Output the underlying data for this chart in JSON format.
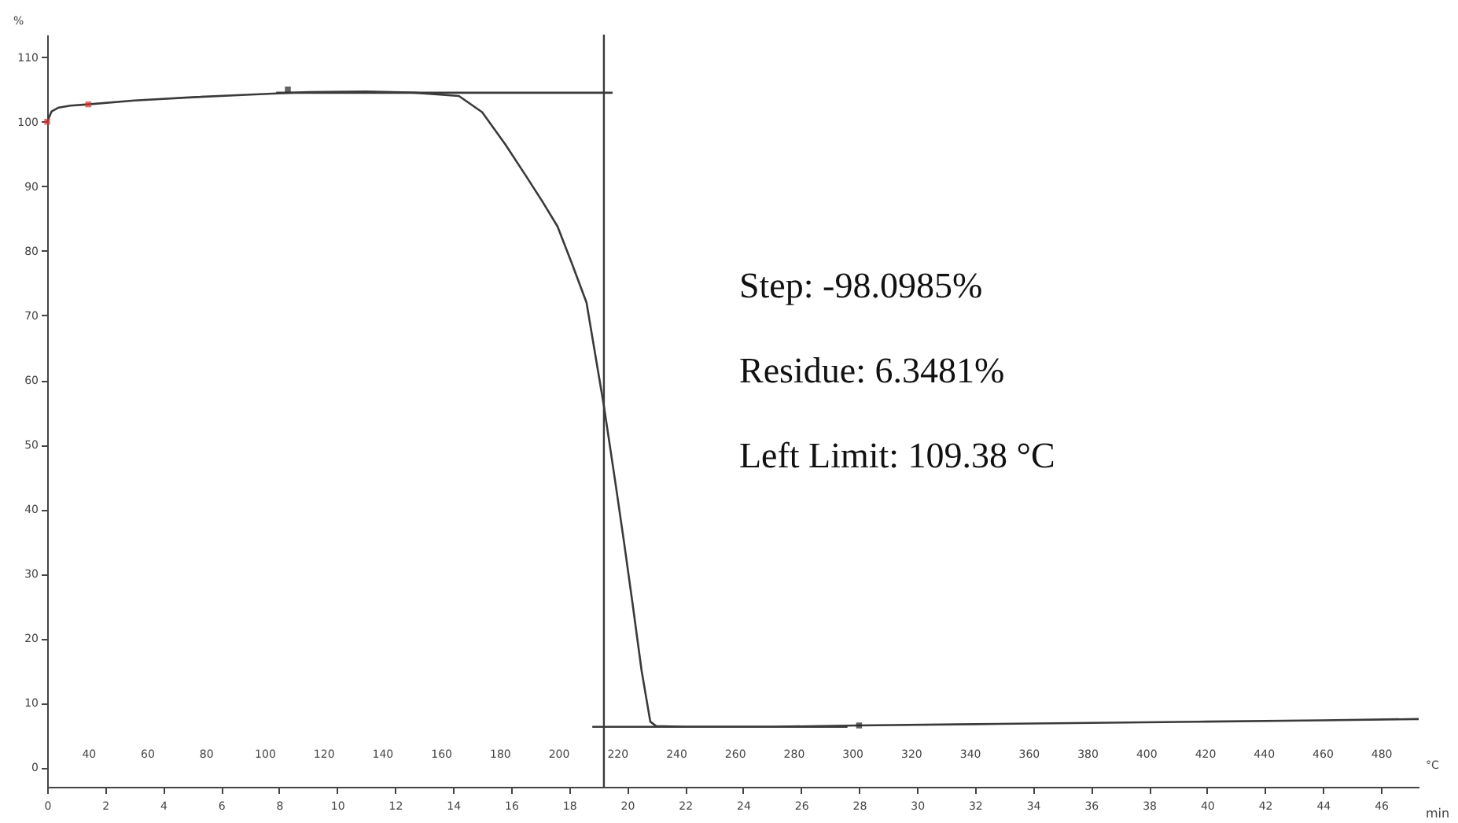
{
  "chart_data": {
    "type": "line",
    "xlabel": "min",
    "x2label": "°C",
    "ylabel": "%",
    "xlim": [
      0,
      47.3
    ],
    "xticks": [
      0,
      2,
      4,
      6,
      8,
      10,
      12,
      14,
      16,
      18,
      20,
      22,
      24,
      26,
      28,
      30,
      32,
      34,
      36,
      38,
      40,
      42,
      44,
      46
    ],
    "x2lim": [
      26,
      492.8
    ],
    "x2ticks": [
      40,
      60,
      80,
      100,
      120,
      140,
      160,
      180,
      200,
      220,
      240,
      260,
      280,
      300,
      320,
      340,
      360,
      380,
      400,
      420,
      440,
      460,
      480
    ],
    "ylim": [
      -3,
      113.5
    ],
    "yticks": [
      0,
      10,
      20,
      30,
      40,
      50,
      60,
      70,
      80,
      90,
      100,
      110
    ],
    "grid": false,
    "series": [
      {
        "color": "#3a3a3a",
        "x": [
          0,
          0.15,
          0.4,
          0.8,
          1.42,
          3,
          5,
          7,
          9,
          11,
          12.7,
          14.2,
          15,
          15.8,
          16.5,
          17.1,
          17.6,
          18.1,
          18.6,
          19.2,
          19.6,
          19.9,
          20.2,
          20.5,
          20.8,
          21,
          22,
          25,
          28,
          32,
          36,
          40,
          44,
          47.3
        ],
        "values": [
          100,
          101.6,
          102.2,
          102.5,
          102.7,
          103.3,
          103.8,
          104.2,
          104.6,
          104.7,
          104.5,
          104,
          101.5,
          96.5,
          91.7,
          87.5,
          83.8,
          78,
          72,
          56,
          44,
          34.7,
          25,
          15,
          7.1,
          6.4,
          6.3,
          6.3,
          6.5,
          6.7,
          6.9,
          7.1,
          7.3,
          7.5
        ]
      },
      {
        "color": "#3a3a3a",
        "x": [
          7.9,
          19.5
        ],
        "values": [
          104.5,
          104.5
        ]
      },
      {
        "color": "#3a3a3a",
        "x": [
          18.8,
          27.6
        ],
        "values": [
          6.3,
          6.3
        ]
      },
      {
        "type": "scatter",
        "marker": "square",
        "color": "#e03030",
        "x": [
          0,
          1.42
        ],
        "values": [
          100,
          102.7
        ]
      },
      {
        "type": "scatter",
        "marker": "square",
        "color": "#222222",
        "x": [
          8.3,
          28
        ],
        "values": [
          105,
          6.5
        ]
      }
    ],
    "ref_lines": [
      {
        "axis": "x",
        "value": 19.2,
        "color": "#3a3a3a"
      }
    ],
    "annotations": [
      "Step: -98.0985%",
      "Residue: 6.3481%",
      "Left Limit: 109.38 °C"
    ]
  }
}
